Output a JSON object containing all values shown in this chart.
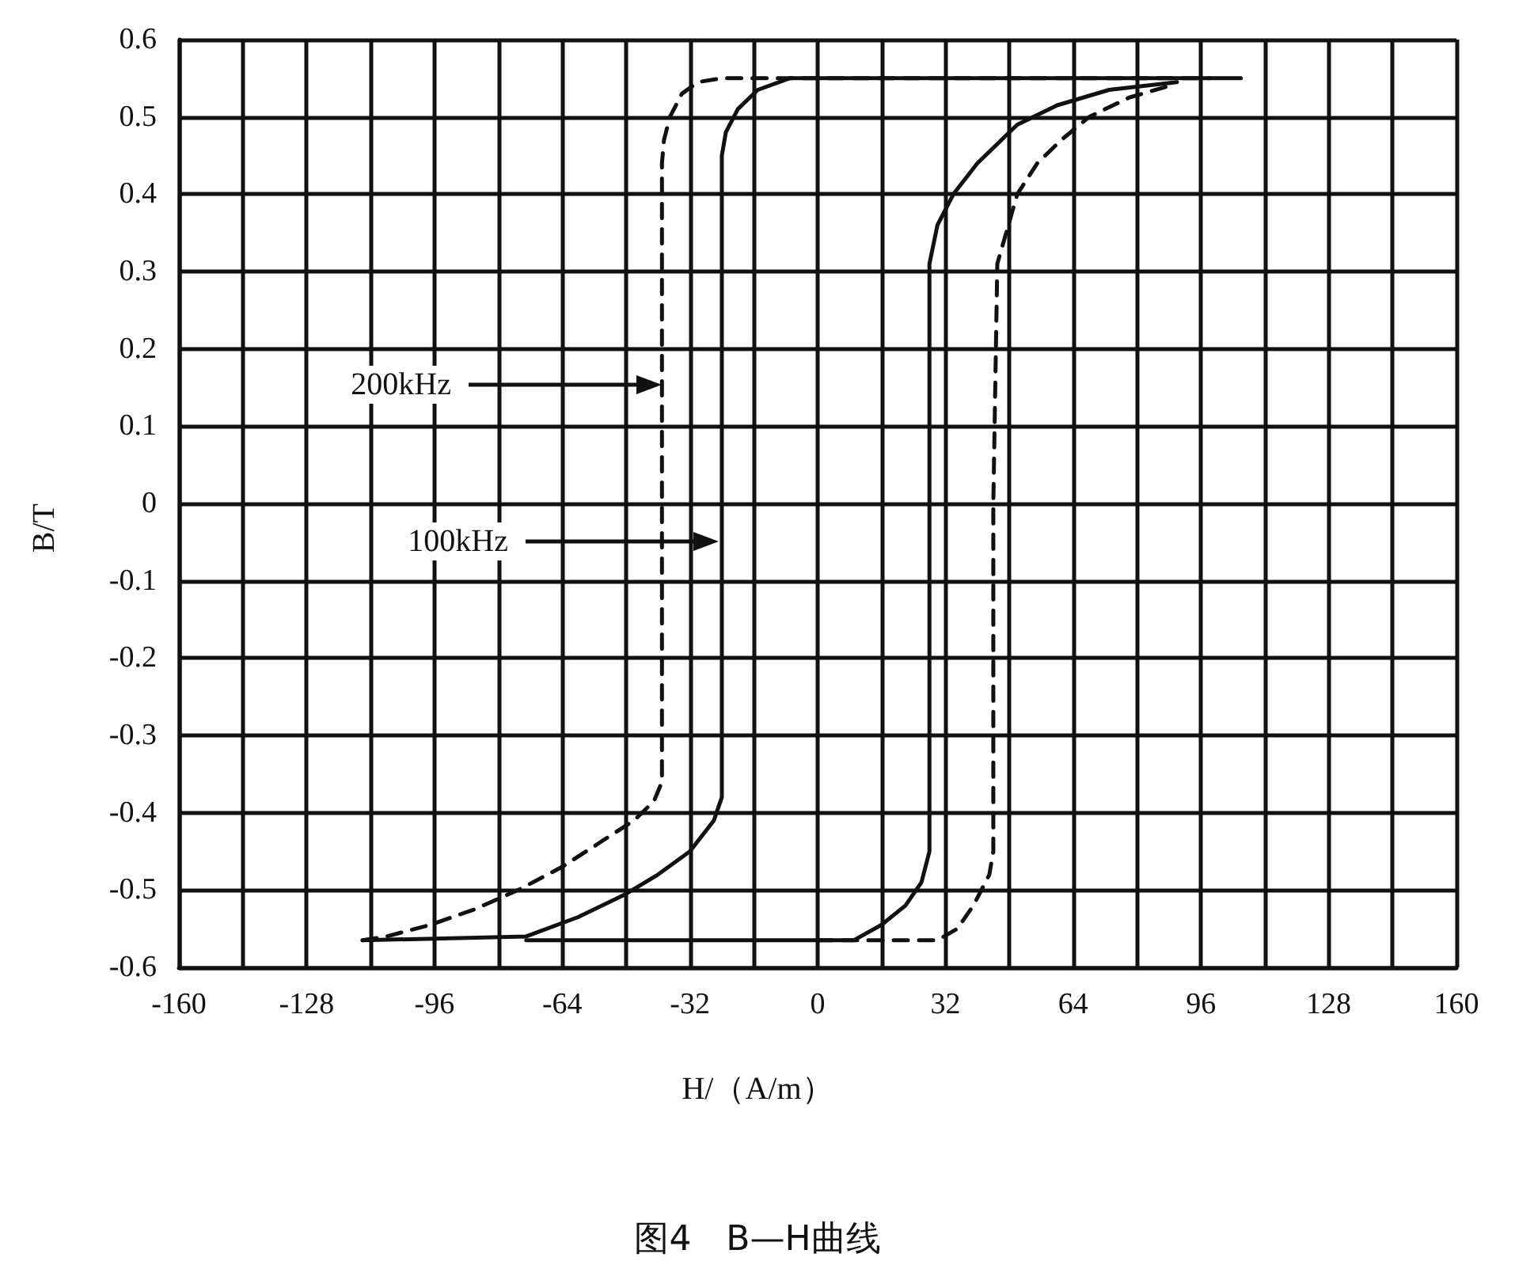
{
  "chart_data": {
    "type": "line",
    "title": "图4　B—H曲线",
    "xlabel": "H/（A/m）",
    "ylabel": "B/T",
    "xlim": [
      -160,
      160
    ],
    "ylim": [
      -0.6,
      0.6
    ],
    "xticks": [
      -160,
      {
        "value": -144,
        "label": null
      },
      -128,
      {
        "value": -112,
        "label": null
      },
      -96,
      {
        "value": -80,
        "label": null
      },
      -64,
      {
        "value": -48,
        "label": null
      },
      -32,
      {
        "value": -16,
        "label": null
      },
      0,
      {
        "value": 16,
        "label": null
      },
      32,
      {
        "value": 48,
        "label": null
      },
      64,
      {
        "value": 80,
        "label": null
      },
      96,
      {
        "value": 112,
        "label": null
      },
      128,
      {
        "value": 144,
        "label": null
      },
      160
    ],
    "yticks": [
      -0.6,
      -0.5,
      -0.4,
      -0.3,
      -0.2,
      -0.1,
      0,
      0.1,
      0.2,
      0.3,
      0.4,
      0.5,
      0.6
    ],
    "grid": true,
    "marker": "none",
    "series": [
      {
        "color": "#111111",
        "line_style": "solid",
        "x": [
          -114,
          -73,
          -60,
          -48,
          -40,
          -32,
          -26,
          -24,
          -24,
          -24,
          -23,
          -20,
          -15,
          -7,
          20,
          60,
          106
        ],
        "values": [
          -0.565,
          -0.56,
          -0.535,
          -0.505,
          -0.48,
          -0.45,
          -0.41,
          -0.38,
          0,
          0.45,
          0.48,
          0.51,
          0.535,
          0.55,
          0.55,
          0.55,
          0.55
        ]
      },
      {
        "color": "#111111",
        "line_style": "solid",
        "x": [
          -73,
          -40,
          9,
          16,
          22,
          26,
          28,
          28,
          28,
          30,
          34,
          40,
          50,
          60,
          73,
          90
        ],
        "values": [
          -0.565,
          -0.565,
          -0.565,
          -0.545,
          -0.52,
          -0.49,
          -0.45,
          0,
          0.31,
          0.36,
          0.4,
          0.44,
          0.49,
          0.515,
          0.535,
          0.545
        ]
      },
      {
        "color": "#111111",
        "line_style": "dashed",
        "x": [
          -114,
          -108,
          -97,
          -86,
          -75,
          -64,
          -55,
          -46,
          -41,
          -39,
          -39,
          -39,
          -38.5,
          -37,
          -34,
          -30,
          -24,
          0,
          60,
          98
        ],
        "values": [
          -0.565,
          -0.56,
          -0.545,
          -0.525,
          -0.5,
          -0.47,
          -0.44,
          -0.41,
          -0.385,
          -0.36,
          0,
          0.44,
          0.47,
          0.5,
          0.53,
          0.545,
          0.55,
          0.55,
          0.55,
          0.55
        ]
      },
      {
        "color": "#111111",
        "line_style": "dashed",
        "x": [
          0,
          30,
          35,
          39,
          41,
          43,
          44,
          44,
          45,
          50,
          55,
          61,
          68,
          78,
          88
        ],
        "values": [
          -0.565,
          -0.565,
          -0.55,
          -0.52,
          -0.5,
          -0.48,
          -0.45,
          0,
          0.31,
          0.4,
          0.44,
          0.47,
          0.5,
          0.525,
          0.54
        ]
      }
    ],
    "annotations": [
      "200kHz",
      "100kHz"
    ]
  }
}
